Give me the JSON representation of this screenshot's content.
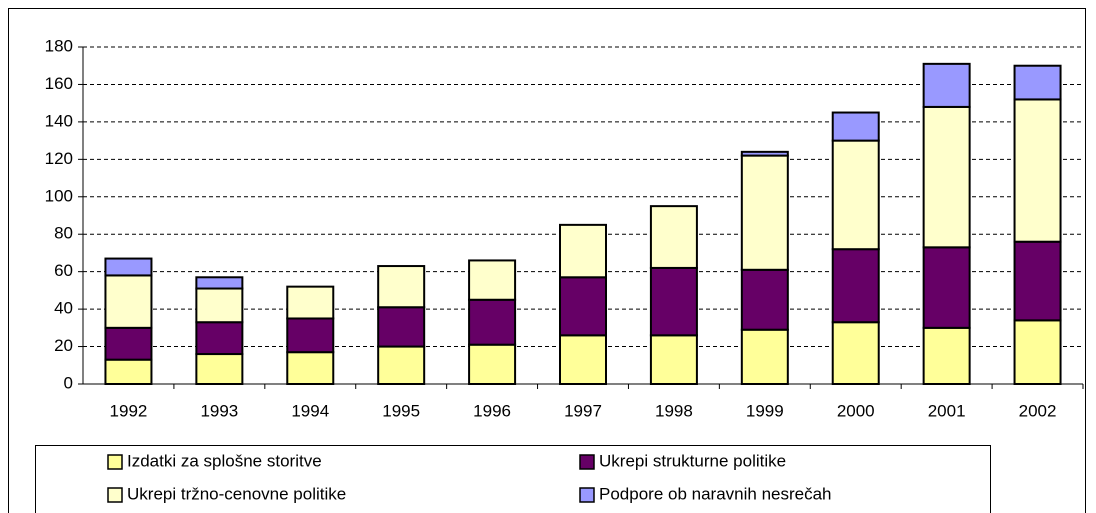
{
  "chart_data": {
    "type": "stacked_bar",
    "categories": [
      "1992",
      "1993",
      "1994",
      "1995",
      "1996",
      "1997",
      "1998",
      "1999",
      "2000",
      "2001",
      "2002"
    ],
    "series": [
      {
        "name": "Izdatki za splošne storitve",
        "color": "#ffff99",
        "values": [
          13,
          16,
          17,
          20,
          21,
          26,
          26,
          29,
          33,
          30,
          34
        ]
      },
      {
        "name": "Ukrepi strukturne politike",
        "color": "#660066",
        "values": [
          17,
          17,
          18,
          21,
          24,
          31,
          36,
          32,
          39,
          43,
          42
        ]
      },
      {
        "name": "Ukrepi tržno-cenovne politike",
        "color": "#ffffcc",
        "values": [
          28,
          18,
          17,
          22,
          21,
          28,
          33,
          61,
          58,
          75,
          76
        ]
      },
      {
        "name": "Podpore ob naravnih nesrečah",
        "color": "#9999ff",
        "values": [
          9,
          6,
          0,
          0,
          0,
          0,
          0,
          2,
          15,
          23,
          18
        ]
      }
    ],
    "ylim": [
      0,
      180
    ],
    "yticks": [
      0,
      20,
      40,
      60,
      80,
      100,
      120,
      140,
      160,
      180
    ],
    "grid": true,
    "legend": "bottom"
  }
}
